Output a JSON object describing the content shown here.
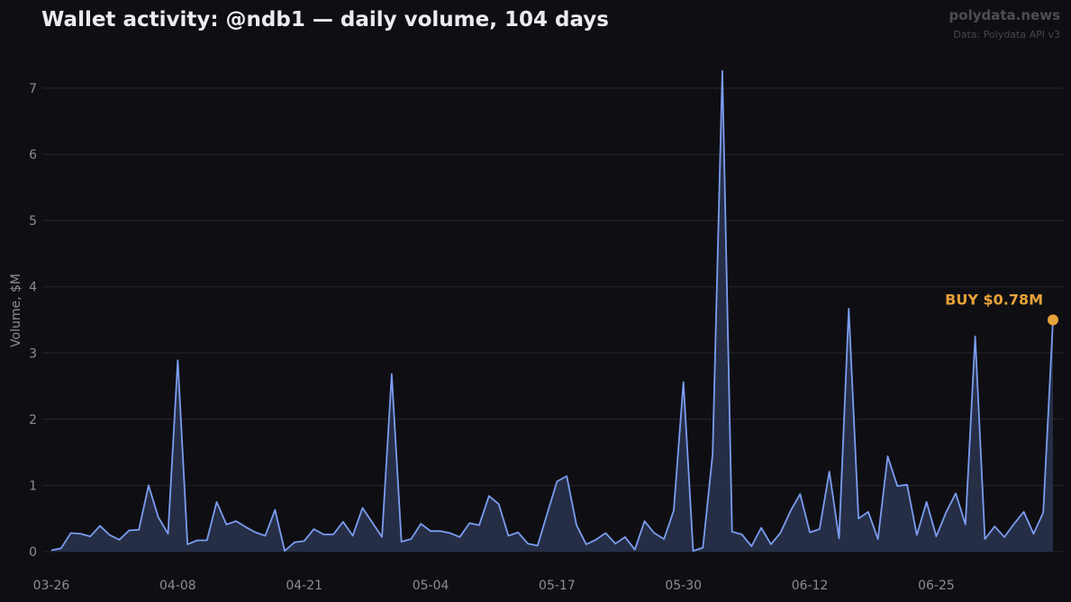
{
  "header": {
    "title": "Wallet activity: @ndb1 — daily volume, 104 days",
    "brand": "polydata.news",
    "source": "Data: Polydata API v3"
  },
  "chart_data": {
    "type": "area",
    "title": "Wallet activity: @ndb1 — daily volume, 104 days",
    "xlabel": "",
    "ylabel": "Volume, $M",
    "ylim": [
      0,
      7.5
    ],
    "yticks": [
      0,
      1,
      2,
      3,
      4,
      5,
      6,
      7
    ],
    "xticks": [
      {
        "label": "03-26",
        "day": 0
      },
      {
        "label": "04-08",
        "day": 13
      },
      {
        "label": "04-21",
        "day": 26
      },
      {
        "label": "05-04",
        "day": 39
      },
      {
        "label": "05-17",
        "day": 52
      },
      {
        "label": "05-30",
        "day": 65
      },
      {
        "label": "06-12",
        "day": 78
      },
      {
        "label": "06-25",
        "day": 91
      }
    ],
    "grid": true,
    "colors": {
      "line": "#7b9cf0",
      "fill": "#2a3450",
      "marker": "#e8a23a"
    },
    "series": [
      {
        "values": [
          0.02,
          0.05,
          0.28,
          0.27,
          0.23,
          0.39,
          0.25,
          0.18,
          0.32,
          0.33,
          1.0,
          0.52,
          0.27,
          2.89,
          0.11,
          0.17,
          0.17,
          0.75,
          0.41,
          0.46,
          0.37,
          0.29,
          0.24,
          0.63,
          0.01,
          0.14,
          0.16,
          0.34,
          0.26,
          0.26,
          0.45,
          0.24,
          0.66,
          0.44,
          0.22,
          2.68,
          0.15,
          0.19,
          0.42,
          0.31,
          0.31,
          0.28,
          0.22,
          0.43,
          0.4,
          0.84,
          0.72,
          0.24,
          0.29,
          0.12,
          0.09,
          0.58,
          1.06,
          1.14,
          0.4,
          0.11,
          0.18,
          0.28,
          0.12,
          0.22,
          0.03,
          0.46,
          0.28,
          0.19,
          0.62,
          2.56,
          0.01,
          0.06,
          1.47,
          7.26,
          0.3,
          0.26,
          0.08,
          0.36,
          0.11,
          0.29,
          0.61,
          0.87,
          0.29,
          0.34,
          1.21,
          0.2,
          3.67,
          0.5,
          0.6,
          0.19,
          1.44,
          0.99,
          1.01,
          0.25,
          0.75,
          0.23,
          0.59,
          0.88,
          0.41,
          3.25,
          0.19,
          0.38,
          0.22,
          0.42,
          0.6,
          0.27,
          0.59,
          3.5
        ]
      }
    ],
    "annotation": {
      "text": "BUY $0.78M",
      "day": 103,
      "value": 3.5
    }
  }
}
